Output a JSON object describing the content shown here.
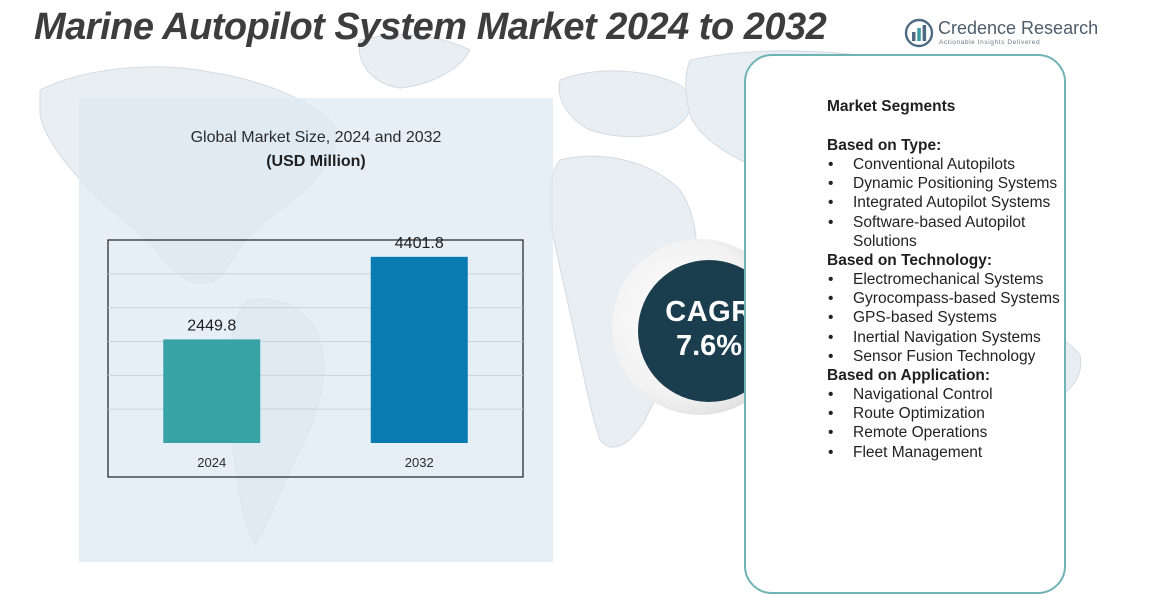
{
  "title": "Marine Autopilot System Market 2024 to 2032",
  "logo": {
    "name": "Credence Research",
    "tagline": "Actionable Insights Delivered",
    "icon": "bar-chart-logo-icon"
  },
  "chart_data": {
    "type": "bar",
    "title": "Global Market Size,  2024 and 2032",
    "unit": "(USD Million)",
    "categories": [
      "2024",
      "2032"
    ],
    "values": [
      2449.8,
      4401.8
    ],
    "value_labels": [
      "2449.8",
      "4401.8"
    ],
    "colors": [
      "#38a3a5",
      "#0a7bb0"
    ],
    "ylim": [
      0,
      4800
    ],
    "grid": true,
    "xlabel": "",
    "ylabel": ""
  },
  "cagr": {
    "label": "CAGR",
    "value": "7.6%"
  },
  "segments": {
    "heading": "Market Segments",
    "groups": [
      {
        "title": "Based on Type:",
        "items": [
          "Conventional Autopilots",
          "Dynamic Positioning Systems",
          "Integrated Autopilot Systems",
          "Software-based Autopilot Solutions"
        ]
      },
      {
        "title": "Based on Technology:",
        "items": [
          "Electromechanical Systems",
          "Gyrocompass-based Systems",
          "GPS-based Systems",
          "Inertial Navigation Systems",
          "Sensor Fusion Technology"
        ]
      },
      {
        "title": "Based on Application:",
        "items": [
          "Navigational Control",
          "Route Optimization",
          "Remote Operations",
          "Fleet Management"
        ]
      }
    ]
  },
  "colors": {
    "title_text": "#3d3d3d",
    "card_border": "#6fb3b3",
    "cagr_fill": "#1b3e4f",
    "panel_fill": "#dce9f3"
  }
}
